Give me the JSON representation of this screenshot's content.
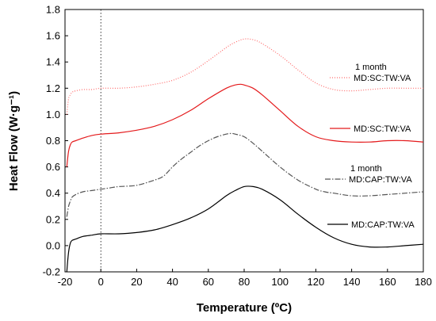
{
  "chart_data": {
    "type": "line",
    "xlabel": "Temperature (ºC)",
    "ylabel": "Heat Flow (W·g⁻¹)",
    "xlim": [
      -20,
      180
    ],
    "ylim": [
      -0.2,
      1.8
    ],
    "xticks": [
      -20,
      0,
      20,
      40,
      60,
      80,
      100,
      120,
      140,
      160,
      180
    ],
    "yticks": [
      -0.2,
      0.0,
      0.2,
      0.4,
      0.6,
      0.8,
      1.0,
      1.2,
      1.4,
      1.6,
      1.8
    ],
    "ytick_labels": [
      "-0.2",
      "0.0",
      "0.2",
      "0.4",
      "0.6",
      "0.8",
      "1.0",
      "1.2",
      "1.4",
      "1.6",
      "1.8"
    ],
    "reference_line_x": 0,
    "grid": false,
    "series": [
      {
        "name": "MD:SC:TW:VA",
        "note": "1 month",
        "color": "#ff6a6a",
        "style": "dotted",
        "x": [
          -19,
          -18,
          -17,
          -16,
          -14,
          -10,
          -5,
          0,
          10,
          20,
          30,
          40,
          50,
          60,
          70,
          75,
          80,
          85,
          90,
          100,
          110,
          120,
          130,
          140,
          150,
          160,
          170,
          180
        ],
        "y": [
          1.0,
          1.12,
          1.15,
          1.17,
          1.18,
          1.19,
          1.19,
          1.2,
          1.2,
          1.21,
          1.23,
          1.26,
          1.32,
          1.41,
          1.51,
          1.55,
          1.575,
          1.57,
          1.54,
          1.45,
          1.34,
          1.24,
          1.19,
          1.18,
          1.19,
          1.2,
          1.2,
          1.2
        ]
      },
      {
        "name": "MD:SC:TW:VA",
        "note": "",
        "color": "#e41a1c",
        "style": "solid",
        "x": [
          -19,
          -18,
          -17,
          -16,
          -14,
          -10,
          -5,
          0,
          10,
          20,
          30,
          40,
          50,
          60,
          70,
          75,
          78,
          80,
          85,
          90,
          100,
          110,
          120,
          130,
          140,
          150,
          160,
          170,
          180
        ],
        "y": [
          0.6,
          0.72,
          0.77,
          0.79,
          0.8,
          0.82,
          0.84,
          0.85,
          0.86,
          0.88,
          0.91,
          0.96,
          1.03,
          1.12,
          1.2,
          1.225,
          1.23,
          1.225,
          1.2,
          1.15,
          1.03,
          0.91,
          0.83,
          0.8,
          0.79,
          0.79,
          0.8,
          0.8,
          0.79
        ]
      },
      {
        "name": "MD:CAP:TW:VA",
        "note": "1 month",
        "color": "#555555",
        "style": "dashdot",
        "x": [
          -19,
          -18,
          -17,
          -16,
          -14,
          -10,
          -5,
          0,
          5,
          10,
          20,
          30,
          35,
          40,
          45,
          50,
          55,
          60,
          65,
          70,
          73,
          75,
          80,
          85,
          90,
          100,
          110,
          120,
          125,
          130,
          140,
          150,
          160,
          170,
          180
        ],
        "y": [
          0.22,
          0.3,
          0.34,
          0.37,
          0.39,
          0.41,
          0.42,
          0.43,
          0.44,
          0.45,
          0.46,
          0.5,
          0.53,
          0.6,
          0.66,
          0.71,
          0.76,
          0.8,
          0.83,
          0.85,
          0.855,
          0.85,
          0.83,
          0.78,
          0.72,
          0.6,
          0.5,
          0.43,
          0.41,
          0.4,
          0.38,
          0.38,
          0.39,
          0.4,
          0.41
        ]
      },
      {
        "name": "MD:CAP:TW:VA",
        "note": "",
        "color": "#000000",
        "style": "solid",
        "x": [
          -19,
          -18,
          -17,
          -16,
          -14,
          -10,
          -5,
          0,
          10,
          20,
          30,
          40,
          50,
          60,
          70,
          75,
          80,
          85,
          90,
          100,
          110,
          120,
          130,
          140,
          150,
          160,
          170,
          180
        ],
        "y": [
          -0.2,
          -0.05,
          0.02,
          0.04,
          0.05,
          0.07,
          0.08,
          0.09,
          0.09,
          0.1,
          0.12,
          0.16,
          0.21,
          0.28,
          0.38,
          0.42,
          0.45,
          0.45,
          0.43,
          0.35,
          0.24,
          0.14,
          0.06,
          0.01,
          -0.01,
          -0.01,
          0.0,
          0.01
        ]
      }
    ]
  }
}
